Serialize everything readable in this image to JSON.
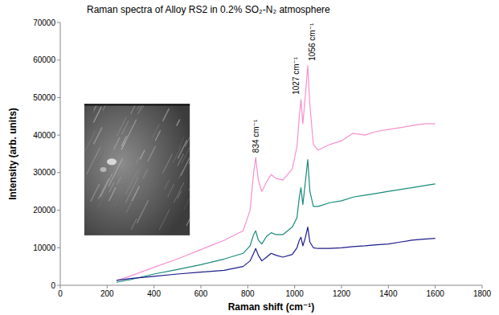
{
  "chart_data": {
    "type": "line",
    "title": "Raman spectra of Alloy RS2 in 0.2% SO₂-N₂ atmosphere",
    "x_label": "Raman shift (cm⁻¹)",
    "y_label": "Intensity (arb. units)",
    "x": [
      240,
      300,
      400,
      500,
      600,
      700,
      780,
      810,
      825,
      834,
      845,
      860,
      880,
      900,
      920,
      950,
      990,
      1010,
      1020,
      1027,
      1035,
      1045,
      1056,
      1065,
      1080,
      1100,
      1150,
      1200,
      1250,
      1300,
      1350,
      1400,
      1450,
      1500,
      1550,
      1600
    ],
    "series": [
      {
        "color": "#f790cf",
        "values": [
          1200,
          2500,
          4800,
          7000,
          9500,
          12000,
          14500,
          20000,
          30000,
          34000,
          28000,
          25000,
          27500,
          29500,
          28500,
          28000,
          31000,
          37000,
          45000,
          49500,
          43000,
          50000,
          58500,
          48000,
          37500,
          36000,
          37500,
          38500,
          40500,
          40000,
          41000,
          41500,
          42000,
          42500,
          43000,
          43000
        ]
      },
      {
        "color": "#178a7c",
        "values": [
          800,
          1500,
          3000,
          4200,
          5500,
          7000,
          8500,
          10500,
          13500,
          14500,
          12000,
          11000,
          13000,
          14000,
          13500,
          13500,
          15500,
          18000,
          23500,
          26000,
          21500,
          27000,
          33500,
          25000,
          21000,
          21000,
          22000,
          22500,
          23500,
          24000,
          24500,
          25000,
          25500,
          26000,
          26500,
          27000
        ]
      },
      {
        "color": "#1c1c8c",
        "values": [
          1300,
          1800,
          2400,
          3000,
          3500,
          4000,
          5000,
          6500,
          8500,
          9800,
          8000,
          6500,
          7500,
          8500,
          8000,
          7500,
          8200,
          10000,
          12000,
          12800,
          10500,
          12500,
          15500,
          11500,
          10000,
          9800,
          9800,
          10000,
          10300,
          10500,
          10800,
          11000,
          11500,
          12000,
          12300,
          12500
        ]
      }
    ],
    "xlim": [
      0,
      1800
    ],
    "xticks": [
      0,
      200,
      400,
      600,
      800,
      1000,
      1200,
      1400,
      1600,
      1800
    ],
    "ylim": [
      0,
      70000
    ],
    "yticks": [
      0,
      10000,
      20000,
      30000,
      40000,
      50000,
      60000,
      70000
    ],
    "grid": false,
    "annotations": [
      {
        "text": "834 cm⁻¹",
        "x": 834,
        "y": 34000
      },
      {
        "text": "1027 cm⁻¹",
        "x": 1027,
        "y": 49500
      },
      {
        "text": "1056 cm⁻¹",
        "x": 1056,
        "y": 58500
      }
    ]
  }
}
